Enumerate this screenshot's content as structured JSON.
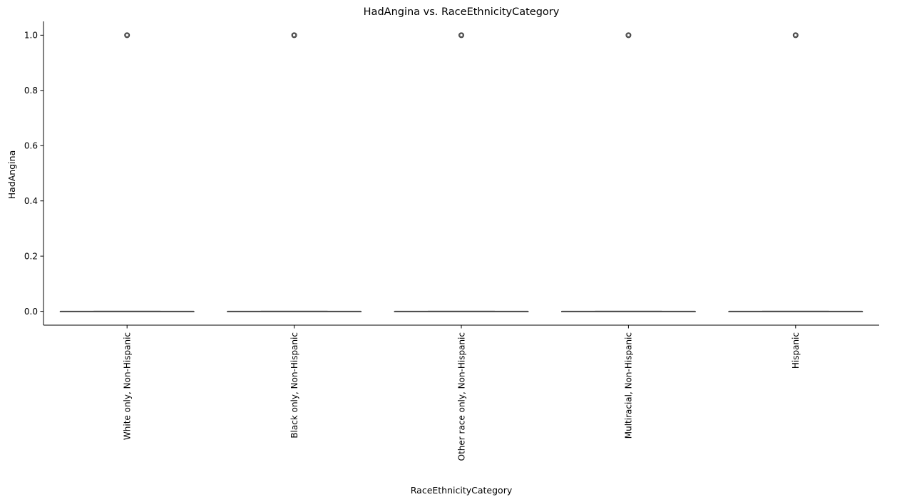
{
  "chart_data": {
    "type": "box",
    "title": "HadAngina vs. RaceEthnicityCategory",
    "xlabel": "RaceEthnicityCategory",
    "ylabel": "HadAngina",
    "ylim": [
      -0.05,
      1.05
    ],
    "yticks": [
      0.0,
      0.2,
      0.4,
      0.6,
      0.8,
      1.0
    ],
    "ytick_labels": [
      "0.0",
      "0.2",
      "0.4",
      "0.6",
      "0.8",
      "1.0"
    ],
    "categories": [
      "White only, Non-Hispanic",
      "Black only, Non-Hispanic",
      "Other race only, Non-Hispanic",
      "Multiracial, Non-Hispanic",
      "Hispanic"
    ],
    "boxes": [
      {
        "min": 0,
        "q1": 0,
        "median": 0,
        "q3": 0,
        "max": 0,
        "outliers": [
          1
        ]
      },
      {
        "min": 0,
        "q1": 0,
        "median": 0,
        "q3": 0,
        "max": 0,
        "outliers": [
          1
        ]
      },
      {
        "min": 0,
        "q1": 0,
        "median": 0,
        "q3": 0,
        "max": 0,
        "outliers": [
          1
        ]
      },
      {
        "min": 0,
        "q1": 0,
        "median": 0,
        "q3": 0,
        "max": 0,
        "outliers": [
          1
        ]
      },
      {
        "min": 0,
        "q1": 0,
        "median": 0,
        "q3": 0,
        "max": 0,
        "outliers": [
          1
        ]
      }
    ],
    "grid": false
  }
}
